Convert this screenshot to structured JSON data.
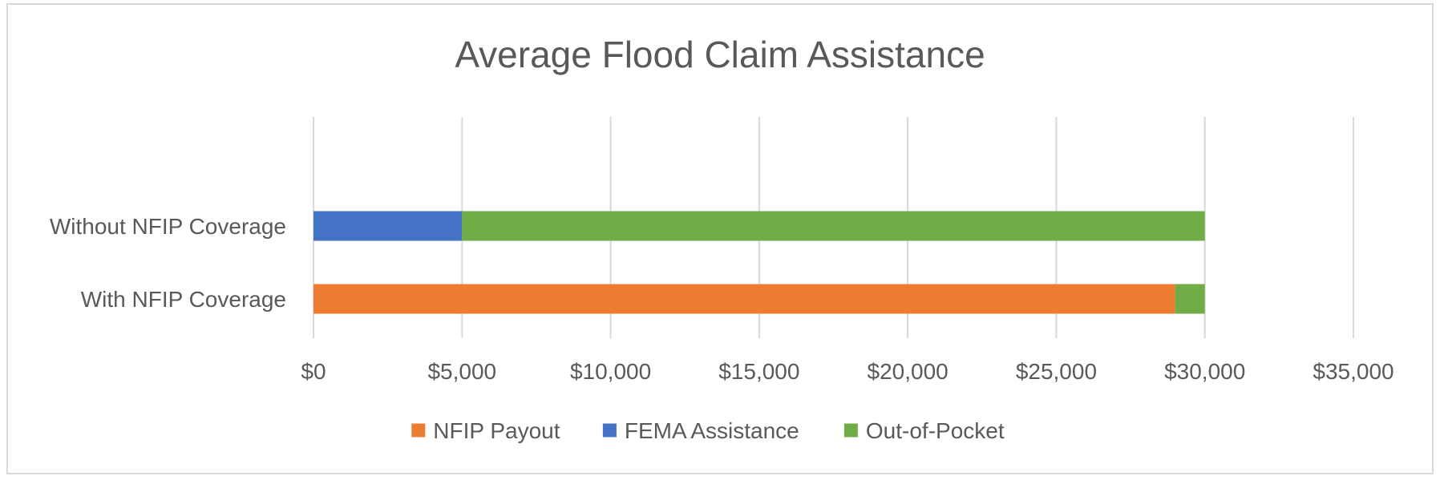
{
  "chart_data": {
    "type": "bar",
    "orientation": "horizontal",
    "stacked": true,
    "title": "Average Flood Claim Assistance",
    "categories": [
      "Without NFIP Coverage",
      "With NFIP Coverage"
    ],
    "series": [
      {
        "name": "NFIP Payout",
        "color": "#ED7D31",
        "values": [
          0,
          29000
        ]
      },
      {
        "name": "FEMA Assistance",
        "color": "#4472C4",
        "values": [
          5000,
          0
        ]
      },
      {
        "name": "Out-of-Pocket",
        "color": "#70AD47",
        "values": [
          25000,
          1000
        ]
      }
    ],
    "xlim": [
      0,
      35000
    ],
    "x_ticks": [
      0,
      5000,
      10000,
      15000,
      20000,
      25000,
      30000,
      35000
    ],
    "x_tick_labels": [
      "$0",
      "$5,000",
      "$10,000",
      "$15,000",
      "$20,000",
      "$25,000",
      "$30,000",
      "$35,000"
    ],
    "grid": true,
    "legend_position": "bottom"
  }
}
